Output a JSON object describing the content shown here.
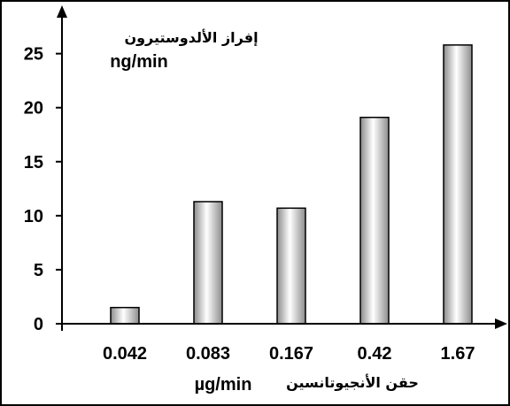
{
  "chart_data": {
    "type": "bar",
    "categories": [
      "0.042",
      "0.083",
      "0.167",
      "0.42",
      "1.67"
    ],
    "values": [
      1.5,
      11.3,
      10.7,
      19.1,
      25.8
    ],
    "ylabel": "إفراز الألدوستيرون",
    "ylabel_unit": "ng/min",
    "xlabel": "حقن الأنجيوتانسين",
    "xlabel_unit": "µg/min",
    "ylim": [
      0,
      28
    ],
    "yticks": [
      0,
      5,
      10,
      15,
      20,
      25
    ],
    "grid": false,
    "colors": {
      "bar_edge": "#000000",
      "bar_light": "#ffffff",
      "bar_dark": "#8c8c8c"
    }
  }
}
